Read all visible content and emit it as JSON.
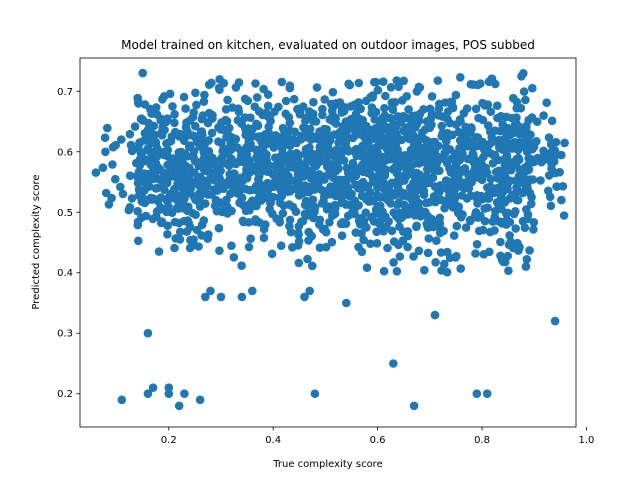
{
  "chart_data": {
    "type": "scatter",
    "title": "Model trained on kitchen, evaluated on outdoor images, POS subbed",
    "xlabel": "True complexity score",
    "ylabel": "Predicted complexity score",
    "xlim": [
      0.03,
      0.98
    ],
    "ylim": [
      0.145,
      0.755
    ],
    "xticks": [
      0.2,
      0.4,
      0.6,
      0.8,
      1.0
    ],
    "xtick_labels": [
      "0.2",
      "0.4",
      "0.6",
      "0.8",
      "1.0"
    ],
    "yticks": [
      0.2,
      0.3,
      0.4,
      0.5,
      0.6,
      0.7
    ],
    "ytick_labels": [
      "0.2",
      "0.3",
      "0.4",
      "0.5",
      "0.6",
      "0.7"
    ],
    "grid": false,
    "marker_color": "#1f77b4",
    "outliers": {
      "x": [
        0.15,
        0.16,
        0.2,
        0.22,
        0.23,
        0.26,
        0.11,
        0.16,
        0.17,
        0.2,
        0.48,
        0.63,
        0.67,
        0.71,
        0.79,
        0.81,
        0.94,
        0.54,
        0.27,
        0.28,
        0.3,
        0.34,
        0.36,
        0.46,
        0.47
      ],
      "y": [
        0.73,
        0.3,
        0.21,
        0.18,
        0.2,
        0.19,
        0.19,
        0.2,
        0.21,
        0.2,
        0.2,
        0.25,
        0.18,
        0.33,
        0.2,
        0.2,
        0.32,
        0.35,
        0.36,
        0.37,
        0.36,
        0.36,
        0.37,
        0.36,
        0.37
      ]
    },
    "clusters": [
      {
        "x_range": [
          0.06,
          0.14
        ],
        "y_range": [
          0.45,
          0.69
        ],
        "count": 25
      },
      {
        "x_range": [
          0.14,
          0.26
        ],
        "y_range": [
          0.42,
          0.7
        ],
        "count": 280
      },
      {
        "x_range": [
          0.26,
          0.46
        ],
        "y_range": [
          0.41,
          0.72
        ],
        "count": 420
      },
      {
        "x_range": [
          0.46,
          0.68
        ],
        "y_range": [
          0.4,
          0.72
        ],
        "count": 650
      },
      {
        "x_range": [
          0.68,
          0.9
        ],
        "y_range": [
          0.4,
          0.73
        ],
        "count": 520
      },
      {
        "x_range": [
          0.9,
          0.96
        ],
        "y_range": [
          0.45,
          0.69
        ],
        "count": 40
      }
    ]
  }
}
